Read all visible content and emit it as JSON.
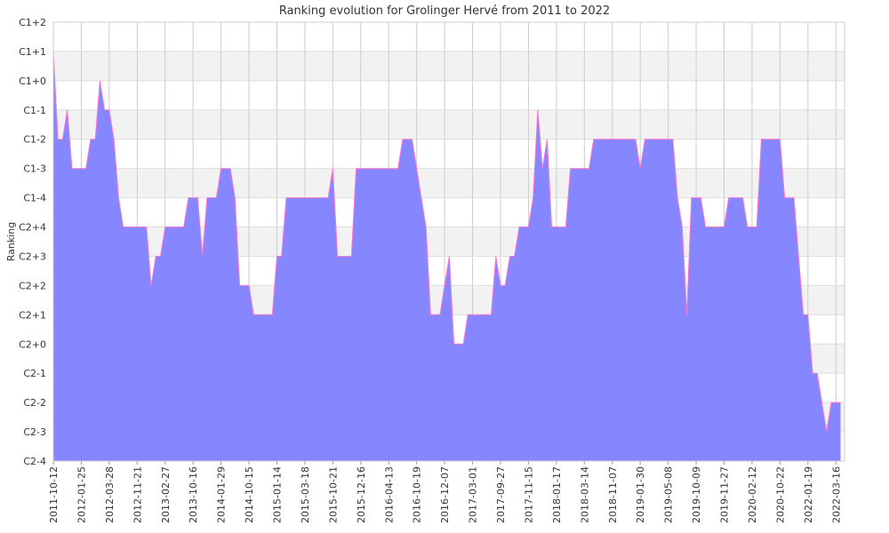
{
  "chart_data": {
    "type": "area",
    "title": "Ranking evolution for Grolinger Hervé from 2011 to 2022",
    "ylabel": "Ranking",
    "categories": [
      "2011-10-12",
      null,
      null,
      null,
      null,
      null,
      "2012-01-25",
      null,
      null,
      null,
      null,
      null,
      "2012-03-28",
      null,
      null,
      null,
      null,
      null,
      "2012-11-21",
      null,
      null,
      null,
      null,
      null,
      "2013-02-27",
      null,
      null,
      null,
      null,
      null,
      "2013-10-16",
      null,
      null,
      null,
      null,
      null,
      "2014-01-29",
      null,
      null,
      null,
      null,
      null,
      "2014-10-15",
      null,
      null,
      null,
      null,
      null,
      "2015-01-14",
      null,
      null,
      null,
      null,
      null,
      "2015-03-18",
      null,
      null,
      null,
      null,
      null,
      "2015-10-21",
      null,
      null,
      null,
      null,
      null,
      "2015-12-16",
      null,
      null,
      null,
      null,
      null,
      "2016-04-13",
      null,
      null,
      null,
      null,
      null,
      "2016-10-19",
      null,
      null,
      null,
      null,
      null,
      "2016-12-07",
      null,
      null,
      null,
      null,
      null,
      "2017-03-01",
      null,
      null,
      null,
      null,
      null,
      "2017-09-27",
      null,
      null,
      null,
      null,
      null,
      "2017-11-15",
      null,
      null,
      null,
      null,
      null,
      "2018-01-17",
      null,
      null,
      null,
      null,
      null,
      "2018-03-14",
      null,
      null,
      null,
      null,
      null,
      "2018-11-07",
      null,
      null,
      null,
      null,
      null,
      "2019-01-30",
      null,
      null,
      null,
      null,
      null,
      "2019-05-08",
      null,
      null,
      null,
      null,
      null,
      "2019-10-09",
      null,
      null,
      null,
      null,
      null,
      "2019-11-27",
      null,
      null,
      null,
      null,
      null,
      "2020-02-12",
      null,
      null,
      null,
      null,
      null,
      "2020-10-22",
      null,
      null,
      null,
      null,
      null,
      "2022-01-19",
      null,
      null,
      null,
      null,
      null,
      "2022-03-16",
      null
    ],
    "series": [
      {
        "name": "Ranking",
        "color": "#7f7fff",
        "line_color": "#ff77cc",
        "values": [
          14,
          11,
          11,
          12,
          10,
          10,
          10,
          10,
          11,
          11,
          13,
          12,
          12,
          11,
          9,
          8,
          8,
          8,
          8,
          8,
          8,
          6,
          7,
          7,
          8,
          8,
          8,
          8,
          8,
          9,
          9,
          9,
          7,
          9,
          9,
          9,
          10,
          10,
          10,
          9,
          6,
          6,
          6,
          5,
          5,
          5,
          5,
          5,
          7,
          7,
          9,
          9,
          9,
          9,
          9,
          9,
          9,
          9,
          9,
          9,
          10,
          7,
          7,
          7,
          7,
          10,
          10,
          10,
          10,
          10,
          10,
          10,
          10,
          10,
          10,
          11,
          11,
          11,
          10,
          9,
          8,
          5,
          5,
          5,
          6,
          7,
          4,
          4,
          4,
          5,
          5,
          5,
          5,
          5,
          5,
          7,
          6,
          6,
          7,
          7,
          8,
          8,
          8,
          9,
          12,
          10,
          11,
          8,
          8,
          8,
          8,
          10,
          10,
          10,
          10,
          10,
          11,
          11,
          11,
          11,
          11,
          11,
          11,
          11,
          11,
          11,
          10,
          11,
          11,
          11,
          11,
          11,
          11,
          11,
          9,
          8,
          5,
          9,
          9,
          9,
          8,
          8,
          8,
          8,
          8,
          9,
          9,
          9,
          9,
          8,
          8,
          8,
          11,
          11,
          11,
          11,
          11,
          9,
          9,
          9,
          7,
          5,
          5,
          3,
          3,
          2,
          1,
          2,
          2,
          2
        ]
      }
    ],
    "ylim": [
      0,
      15
    ],
    "yticks": [
      {
        "value": 0,
        "label": "C2-4"
      },
      {
        "value": 1,
        "label": "C2-3"
      },
      {
        "value": 2,
        "label": "C2-2"
      },
      {
        "value": 3,
        "label": "C2-1"
      },
      {
        "value": 4,
        "label": "C2+0"
      },
      {
        "value": 5,
        "label": "C2+1"
      },
      {
        "value": 6,
        "label": "C2+2"
      },
      {
        "value": 7,
        "label": "C2+3"
      },
      {
        "value": 8,
        "label": "C2+4"
      },
      {
        "value": 9,
        "label": "C1-4"
      },
      {
        "value": 10,
        "label": "C1-3"
      },
      {
        "value": 11,
        "label": "C1-2"
      },
      {
        "value": 12,
        "label": "C1-1"
      },
      {
        "value": 13,
        "label": "C1+0"
      },
      {
        "value": 14,
        "label": "C1+1"
      },
      {
        "value": 15,
        "label": "C1+2"
      }
    ],
    "grid": true
  }
}
